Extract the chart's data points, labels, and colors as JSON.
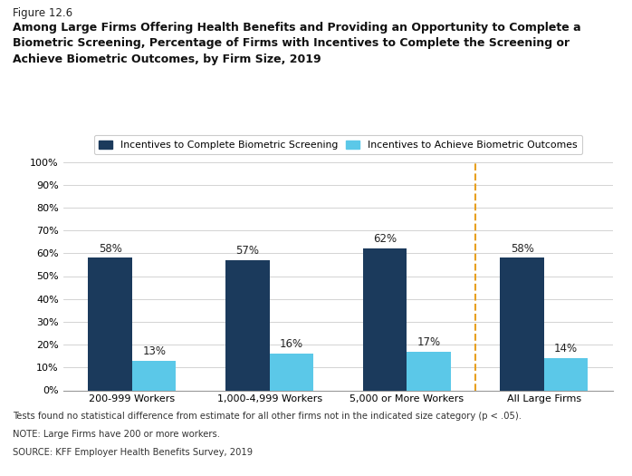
{
  "figure_label": "Figure 12.6",
  "title_lines": [
    "Among Large Firms Offering Health Benefits and Providing an Opportunity to Complete a",
    "Biometric Screening, Percentage of Firms with Incentives to Complete the Screening or",
    "Achieve Biometric Outcomes, by Firm Size, 2019"
  ],
  "categories": [
    "200-999 Workers",
    "1,000-4,999 Workers",
    "5,000 or More Workers",
    "All Large Firms"
  ],
  "series1_label": "Incentives to Complete Biometric Screening",
  "series2_label": "Incentives to Achieve Biometric Outcomes",
  "series1_values": [
    58,
    57,
    62,
    58
  ],
  "series2_values": [
    13,
    16,
    17,
    14
  ],
  "series1_color": "#1b3a5c",
  "series2_color": "#5bc8e8",
  "bar_width": 0.32,
  "ylim": [
    0,
    100
  ],
  "yticks": [
    0,
    10,
    20,
    30,
    40,
    50,
    60,
    70,
    80,
    90,
    100
  ],
  "ytick_labels": [
    "0%",
    "10%",
    "20%",
    "30%",
    "40%",
    "50%",
    "60%",
    "70%",
    "80%",
    "90%",
    "100%"
  ],
  "dashed_line_color": "#e8a020",
  "footnote_lines": [
    "Tests found no statistical difference from estimate for all other firms not in the indicated size category (p < .05).",
    "NOTE: Large Firms have 200 or more workers.",
    "SOURCE: KFF Employer Health Benefits Survey, 2019"
  ],
  "background_color": "#ffffff",
  "value_label_fontsize": 8.5,
  "tick_fontsize": 8,
  "footnote_fontsize": 7.2,
  "legend_fontsize": 7.8,
  "figure_label_fontsize": 8.5,
  "title_fontsize": 9.0
}
